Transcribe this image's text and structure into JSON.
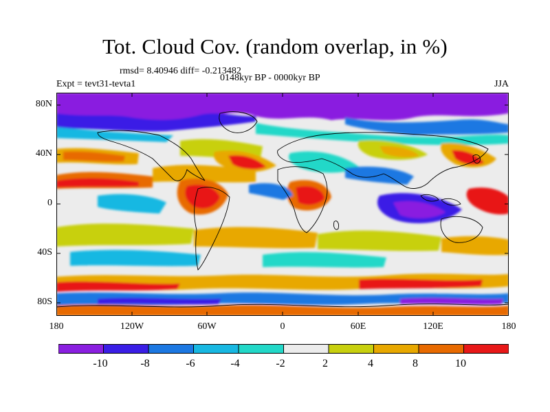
{
  "title": "Tot. Cloud Cov. (random overlap, in %)",
  "stats": "rmsd= 8.40946 diff= -0.213482",
  "period": "0148kyr BP - 0000kyr BP",
  "experiment": "Expt = tevt31-tevta1",
  "season": "JJA",
  "lat_labels": [
    "80N",
    "40N",
    "0",
    "40S",
    "80S"
  ],
  "lon_labels": [
    "180",
    "120W",
    "60W",
    "0",
    "60E",
    "120E",
    "180"
  ],
  "colorbar": {
    "labels": [
      "-10",
      "-8",
      "-6",
      "-4",
      "-2",
      "2",
      "4",
      "8",
      "10"
    ],
    "colors": [
      "#8a1fe0",
      "#3a1ee6",
      "#1c78e2",
      "#18b8e2",
      "#22d8c8",
      "#ececec",
      "#c8d00e",
      "#e8a800",
      "#e86a00",
      "#e81818"
    ]
  }
}
